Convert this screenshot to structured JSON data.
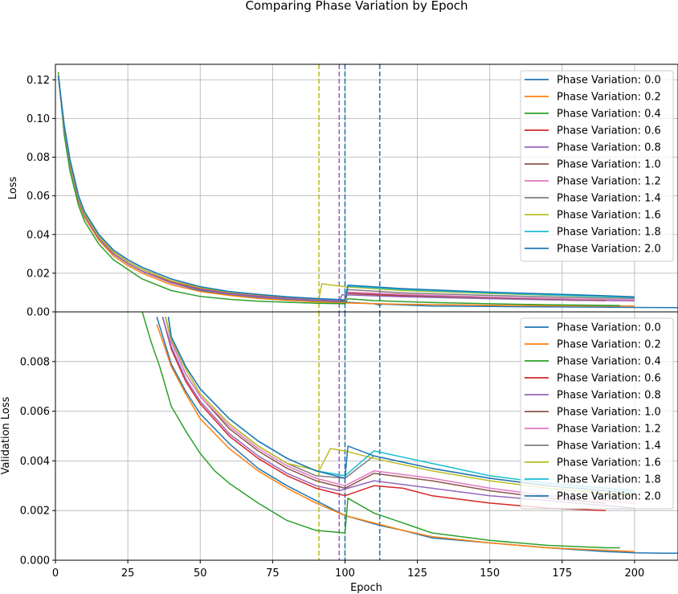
{
  "figure": {
    "title": "Comparing Phase Variation by Epoch",
    "xlabel": "Epoch",
    "xticks": [
      0,
      25,
      50,
      75,
      100,
      125,
      150,
      175,
      200
    ],
    "xlim": [
      0,
      215
    ]
  },
  "chart_data": [
    {
      "type": "line",
      "panel": "top",
      "ylabel": "Loss",
      "ylim": [
        0.0,
        0.128
      ],
      "yticks": [
        "0.00",
        "0.02",
        "0.04",
        "0.06",
        "0.08",
        "0.10",
        "0.12"
      ],
      "grid": true,
      "legend_position": "top-right",
      "vlines": [
        {
          "x": 91,
          "color": "#bcbd22",
          "style": "dashed"
        },
        {
          "x": 98,
          "color": "#9467bd",
          "style": "dashed"
        },
        {
          "x": 100,
          "color": "#1f77b4",
          "style": "dashed"
        },
        {
          "x": 112,
          "color": "#1f77b4",
          "style": "dashed"
        }
      ],
      "series": [
        {
          "name": "Phase Variation: 0.0",
          "color": "#1f77b4",
          "x": [
            1,
            3,
            5,
            8,
            10,
            15,
            20,
            25,
            30,
            40,
            50,
            60,
            70,
            80,
            90,
            100,
            110,
            112,
            113,
            130,
            150,
            170,
            200,
            215
          ],
          "y": [
            0.123,
            0.095,
            0.077,
            0.058,
            0.05,
            0.038,
            0.03,
            0.025,
            0.021,
            0.015,
            0.011,
            0.009,
            0.0075,
            0.0065,
            0.0055,
            0.005,
            0.0042,
            0.0035,
            0.004,
            0.003,
            0.0028,
            0.0026,
            0.0023,
            0.0022
          ]
        },
        {
          "name": "Phase Variation: 0.2",
          "color": "#ff7f0e",
          "x": [
            1,
            3,
            5,
            8,
            10,
            15,
            20,
            25,
            30,
            40,
            50,
            60,
            70,
            80,
            90,
            100,
            120,
            150,
            180,
            200
          ],
          "y": [
            0.122,
            0.094,
            0.076,
            0.057,
            0.049,
            0.037,
            0.029,
            0.024,
            0.02,
            0.014,
            0.0105,
            0.0085,
            0.007,
            0.006,
            0.0052,
            0.0046,
            0.0039,
            0.0034,
            0.0031,
            0.003
          ]
        },
        {
          "name": "Phase Variation: 0.4",
          "color": "#2ca02c",
          "x": [
            1,
            3,
            5,
            8,
            10,
            15,
            20,
            25,
            30,
            40,
            50,
            60,
            70,
            80,
            90,
            100,
            101,
            110,
            130,
            150,
            170,
            195
          ],
          "y": [
            0.124,
            0.092,
            0.073,
            0.055,
            0.047,
            0.035,
            0.027,
            0.022,
            0.017,
            0.011,
            0.008,
            0.0065,
            0.0055,
            0.005,
            0.0045,
            0.0042,
            0.0068,
            0.0058,
            0.0048,
            0.0042,
            0.0037,
            0.0033
          ]
        },
        {
          "name": "Phase Variation: 0.6",
          "color": "#d62728",
          "x": [
            1,
            3,
            5,
            8,
            10,
            15,
            20,
            25,
            30,
            40,
            50,
            60,
            70,
            80,
            90,
            100,
            101,
            120,
            150,
            180,
            190
          ],
          "y": [
            0.122,
            0.095,
            0.077,
            0.058,
            0.05,
            0.038,
            0.03,
            0.025,
            0.021,
            0.0155,
            0.012,
            0.0098,
            0.0083,
            0.0072,
            0.0063,
            0.0056,
            0.0095,
            0.0082,
            0.007,
            0.006,
            0.0058
          ]
        },
        {
          "name": "Phase Variation: 0.8",
          "color": "#9467bd",
          "x": [
            1,
            3,
            5,
            8,
            10,
            15,
            20,
            25,
            30,
            40,
            50,
            60,
            70,
            80,
            90,
            98,
            99,
            120,
            150,
            180,
            200
          ],
          "y": [
            0.122,
            0.095,
            0.077,
            0.058,
            0.05,
            0.038,
            0.03,
            0.025,
            0.021,
            0.015,
            0.0115,
            0.0093,
            0.0078,
            0.0068,
            0.006,
            0.0055,
            0.0088,
            0.0078,
            0.0068,
            0.006,
            0.0057
          ]
        },
        {
          "name": "Phase Variation: 1.0",
          "color": "#8c564b",
          "x": [
            1,
            3,
            5,
            8,
            10,
            15,
            20,
            25,
            30,
            40,
            50,
            60,
            70,
            80,
            90,
            100,
            101,
            120,
            150,
            180,
            190
          ],
          "y": [
            0.122,
            0.096,
            0.078,
            0.059,
            0.051,
            0.039,
            0.031,
            0.026,
            0.022,
            0.016,
            0.0125,
            0.01,
            0.0086,
            0.0075,
            0.0066,
            0.0058,
            0.0098,
            0.0086,
            0.0073,
            0.0063,
            0.006
          ]
        },
        {
          "name": "Phase Variation: 1.2",
          "color": "#e377c2",
          "x": [
            1,
            3,
            5,
            8,
            10,
            15,
            20,
            25,
            30,
            40,
            50,
            60,
            70,
            80,
            90,
            100,
            101,
            120,
            150,
            180,
            200
          ],
          "y": [
            0.122,
            0.096,
            0.078,
            0.059,
            0.051,
            0.039,
            0.031,
            0.026,
            0.022,
            0.016,
            0.0125,
            0.0101,
            0.0087,
            0.0076,
            0.0067,
            0.006,
            0.0102,
            0.009,
            0.0077,
            0.0066,
            0.0062
          ]
        },
        {
          "name": "Phase Variation: 1.4",
          "color": "#7f7f7f",
          "x": [
            1,
            3,
            5,
            8,
            10,
            15,
            20,
            25,
            30,
            40,
            50,
            60,
            70,
            80,
            90,
            100,
            101,
            120,
            150,
            180,
            200
          ],
          "y": [
            0.122,
            0.096,
            0.078,
            0.059,
            0.051,
            0.039,
            0.031,
            0.026,
            0.022,
            0.016,
            0.0125,
            0.0102,
            0.0088,
            0.0077,
            0.0068,
            0.0061,
            0.0115,
            0.0098,
            0.0085,
            0.0074,
            0.007
          ]
        },
        {
          "name": "Phase Variation: 1.6",
          "color": "#bcbd22",
          "x": [
            1,
            3,
            5,
            8,
            10,
            15,
            20,
            25,
            30,
            40,
            50,
            60,
            70,
            80,
            90,
            91,
            92,
            100,
            120,
            150,
            180,
            200
          ],
          "y": [
            0.123,
            0.096,
            0.078,
            0.059,
            0.051,
            0.039,
            0.031,
            0.026,
            0.022,
            0.016,
            0.0125,
            0.0102,
            0.0088,
            0.0077,
            0.0068,
            0.0066,
            0.0145,
            0.013,
            0.011,
            0.0095,
            0.0082,
            0.0076
          ]
        },
        {
          "name": "Phase Variation: 1.8",
          "color": "#17becf",
          "x": [
            1,
            3,
            5,
            8,
            10,
            15,
            20,
            25,
            30,
            40,
            50,
            60,
            70,
            80,
            90,
            100,
            101,
            120,
            150,
            180,
            200
          ],
          "y": [
            0.122,
            0.097,
            0.079,
            0.06,
            0.052,
            0.04,
            0.032,
            0.027,
            0.023,
            0.017,
            0.013,
            0.0105,
            0.009,
            0.0078,
            0.0069,
            0.0062,
            0.0133,
            0.0115,
            0.0098,
            0.0083,
            0.0075
          ]
        },
        {
          "name": "Phase Variation: 2.0",
          "color": "#1f77b4",
          "x": [
            1,
            3,
            5,
            8,
            10,
            15,
            20,
            25,
            30,
            40,
            50,
            60,
            70,
            80,
            90,
            100,
            101,
            120,
            150,
            180,
            200
          ],
          "y": [
            0.122,
            0.097,
            0.079,
            0.06,
            0.052,
            0.04,
            0.032,
            0.027,
            0.023,
            0.017,
            0.013,
            0.0105,
            0.009,
            0.0078,
            0.0069,
            0.0062,
            0.0138,
            0.012,
            0.0102,
            0.0088,
            0.0078
          ]
        }
      ]
    },
    {
      "type": "line",
      "panel": "bottom",
      "ylabel": "Validation Loss",
      "ylim": [
        0.0,
        0.01
      ],
      "yticks": [
        "0.000",
        "0.002",
        "0.004",
        "0.006",
        "0.008"
      ],
      "grid": true,
      "legend_position": "top-right",
      "vlines": [
        {
          "x": 91,
          "color": "#bcbd22",
          "style": "dashed"
        },
        {
          "x": 98,
          "color": "#9467bd",
          "style": "dashed"
        },
        {
          "x": 100,
          "color": "#1f77b4",
          "style": "dashed"
        },
        {
          "x": 112,
          "color": "#1f77b4",
          "style": "dashed"
        }
      ],
      "series": [
        {
          "name": "Phase Variation: 0.0",
          "color": "#1f77b4",
          "x": [
            35,
            40,
            45,
            50,
            60,
            70,
            80,
            90,
            100,
            112,
            120,
            130,
            150,
            170,
            190,
            200,
            210,
            215
          ],
          "y": [
            0.0098,
            0.0079,
            0.0068,
            0.0059,
            0.0047,
            0.0037,
            0.003,
            0.0024,
            0.0018,
            0.0014,
            0.0012,
            0.0009,
            0.0007,
            0.0005,
            0.00035,
            0.0003,
            0.00028,
            0.00028
          ]
        },
        {
          "name": "Phase Variation: 0.2",
          "color": "#ff7f0e",
          "x": [
            35,
            40,
            45,
            50,
            60,
            70,
            80,
            90,
            100,
            110,
            120,
            130,
            150,
            170,
            190,
            200
          ],
          "y": [
            0.0095,
            0.0078,
            0.0067,
            0.0057,
            0.0045,
            0.0036,
            0.0029,
            0.0023,
            0.0018,
            0.0015,
            0.0012,
            0.00095,
            0.0007,
            0.0005,
            0.0004,
            0.00035
          ]
        },
        {
          "name": "Phase Variation: 0.4",
          "color": "#2ca02c",
          "x": [
            30,
            33,
            36,
            40,
            45,
            50,
            55,
            60,
            70,
            80,
            90,
            100,
            101,
            110,
            120,
            130,
            150,
            170,
            190,
            195
          ],
          "y": [
            0.01,
            0.0088,
            0.0078,
            0.0062,
            0.0052,
            0.0043,
            0.0036,
            0.0031,
            0.0023,
            0.0016,
            0.0012,
            0.0011,
            0.0025,
            0.0019,
            0.0015,
            0.0011,
            0.0008,
            0.0006,
            0.0005,
            0.0005
          ]
        },
        {
          "name": "Phase Variation: 0.6",
          "color": "#d62728",
          "x": [
            37,
            40,
            45,
            50,
            60,
            70,
            80,
            90,
            100,
            110,
            120,
            130,
            150,
            170,
            190
          ],
          "y": [
            0.0098,
            0.0085,
            0.0072,
            0.0063,
            0.005,
            0.0041,
            0.0034,
            0.0029,
            0.0026,
            0.003,
            0.0029,
            0.0026,
            0.0023,
            0.0021,
            0.002
          ]
        },
        {
          "name": "Phase Variation: 0.8",
          "color": "#9467bd",
          "x": [
            37,
            40,
            45,
            50,
            60,
            70,
            80,
            90,
            98,
            110,
            130,
            150,
            170,
            190,
            200
          ],
          "y": [
            0.0098,
            0.0086,
            0.0073,
            0.0064,
            0.0051,
            0.0042,
            0.0035,
            0.003,
            0.0028,
            0.0032,
            0.0029,
            0.0026,
            0.0024,
            0.0022,
            0.0021
          ]
        },
        {
          "name": "Phase Variation: 1.0",
          "color": "#8c564b",
          "x": [
            38,
            40,
            45,
            50,
            60,
            70,
            80,
            90,
            100,
            110,
            130,
            150,
            170,
            190
          ],
          "y": [
            0.0098,
            0.0088,
            0.0075,
            0.0066,
            0.0053,
            0.0044,
            0.0037,
            0.0032,
            0.0029,
            0.0035,
            0.0032,
            0.0028,
            0.0025,
            0.0023
          ]
        },
        {
          "name": "Phase Variation: 1.2",
          "color": "#e377c2",
          "x": [
            38,
            40,
            45,
            50,
            60,
            70,
            80,
            90,
            100,
            110,
            130,
            150,
            170,
            190,
            200
          ],
          "y": [
            0.0098,
            0.0088,
            0.0075,
            0.0066,
            0.0054,
            0.0045,
            0.0038,
            0.0033,
            0.003,
            0.0036,
            0.0033,
            0.0029,
            0.0026,
            0.0024,
            0.0023
          ]
        },
        {
          "name": "Phase Variation: 1.4",
          "color": "#7f7f7f",
          "x": [
            38,
            40,
            45,
            50,
            60,
            70,
            80,
            90,
            100,
            110,
            130,
            150,
            170,
            190,
            200
          ],
          "y": [
            0.0098,
            0.0089,
            0.0077,
            0.0067,
            0.0055,
            0.0046,
            0.0039,
            0.0034,
            0.0033,
            0.0042,
            0.0037,
            0.0033,
            0.003,
            0.0028,
            0.0027
          ]
        },
        {
          "name": "Phase Variation: 1.6",
          "color": "#bcbd22",
          "x": [
            38,
            40,
            45,
            50,
            60,
            70,
            80,
            91,
            95,
            100,
            110,
            130,
            150,
            170,
            190,
            200
          ],
          "y": [
            0.0098,
            0.0089,
            0.0077,
            0.0067,
            0.0055,
            0.0046,
            0.0039,
            0.0036,
            0.0045,
            0.0044,
            0.0041,
            0.0036,
            0.0032,
            0.0029,
            0.0027,
            0.0026
          ]
        },
        {
          "name": "Phase Variation: 1.8",
          "color": "#17becf",
          "x": [
            39,
            40,
            45,
            50,
            60,
            70,
            80,
            90,
            100,
            110,
            130,
            150,
            170,
            190,
            200
          ],
          "y": [
            0.0098,
            0.009,
            0.0078,
            0.0069,
            0.0057,
            0.0048,
            0.0041,
            0.0036,
            0.0034,
            0.0044,
            0.0039,
            0.0034,
            0.0031,
            0.0029,
            0.0028
          ]
        },
        {
          "name": "Phase Variation: 2.0",
          "color": "#1f77b4",
          "x": [
            39,
            40,
            45,
            50,
            60,
            70,
            80,
            90,
            100,
            101,
            110,
            130,
            150,
            170,
            190,
            200
          ],
          "y": [
            0.0098,
            0.009,
            0.0078,
            0.0069,
            0.0057,
            0.0048,
            0.0041,
            0.0036,
            0.0033,
            0.0046,
            0.0042,
            0.0037,
            0.0033,
            0.003,
            0.0028,
            0.0027
          ]
        }
      ]
    }
  ]
}
